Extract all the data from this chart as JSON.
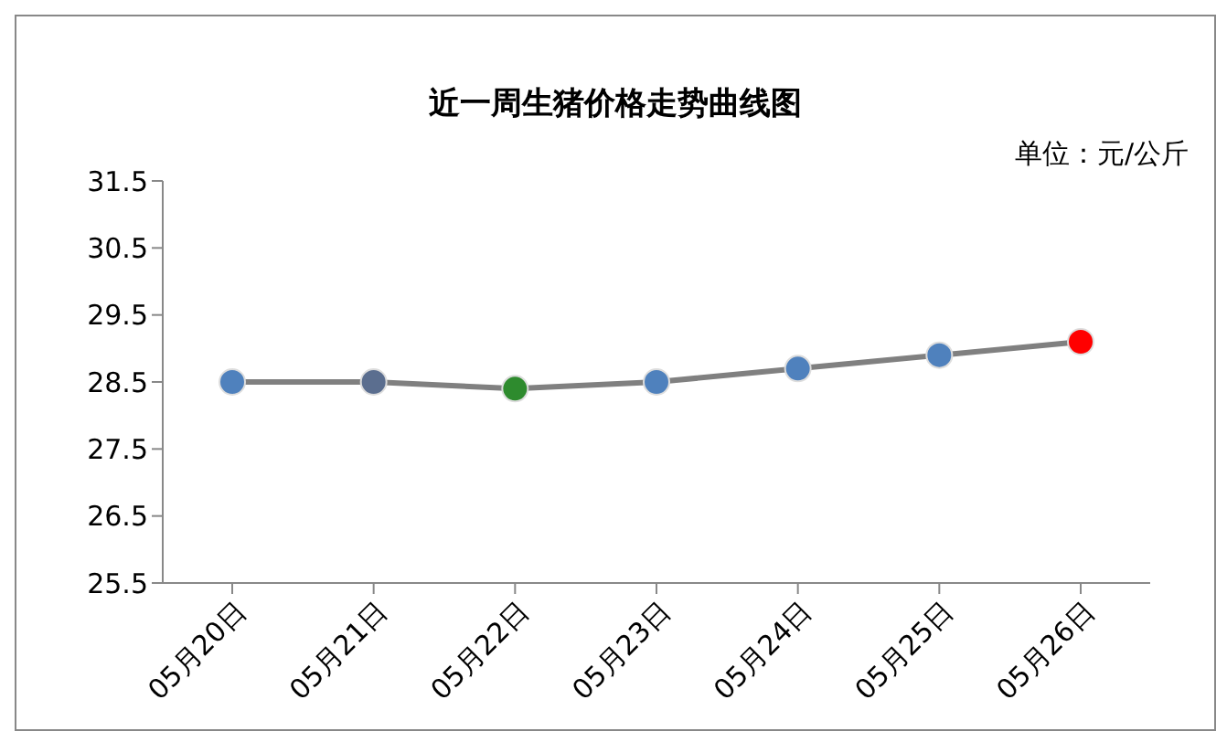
{
  "chart_data": {
    "type": "line",
    "title": "近一周生猪价格走势曲线图",
    "annotations": [
      "单位：元/公斤"
    ],
    "categories": [
      "05月20日",
      "05月21日",
      "05月22日",
      "05月23日",
      "05月24日",
      "05月25日",
      "05月26日"
    ],
    "series": [
      {
        "color": "#808080",
        "colors": [
          "#4f81bd",
          "#5b6e8f",
          "#2e8b2e",
          "#4f81bd",
          "#4f81bd",
          "#4f81bd",
          "#ff0000"
        ],
        "values": [
          28.5,
          28.5,
          28.4,
          28.5,
          28.7,
          28.9,
          29.1
        ]
      }
    ],
    "ylim": [
      25.5,
      31.5
    ],
    "yticks": [
      25.5,
      26.5,
      27.5,
      28.5,
      29.5,
      30.5,
      31.5
    ],
    "grid": false,
    "legend": false,
    "marker": "circle",
    "line_style": "solid"
  }
}
